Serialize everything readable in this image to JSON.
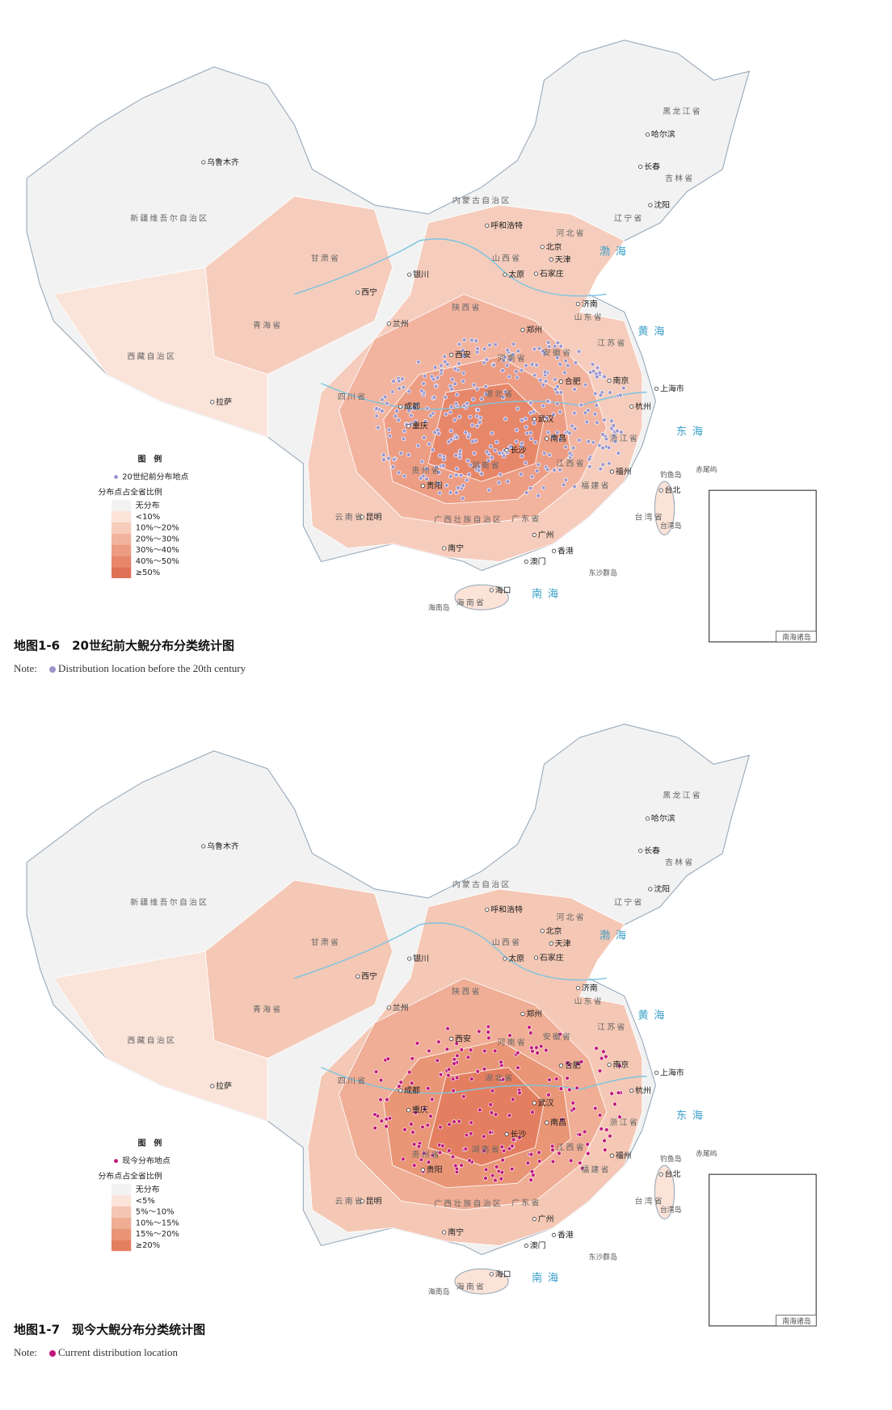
{
  "place_names": [
    "乌鲁木齐",
    "新疆维吾尔自治区",
    "内蒙古自治区",
    "呼和浩特",
    "北京",
    "天津",
    "石家庄",
    "太原",
    "济南",
    "郑州",
    "西安",
    "银川",
    "兰州",
    "西宁",
    "拉萨",
    "成都",
    "重庆",
    "武汉",
    "长沙",
    "南昌",
    "合肥",
    "南京",
    "上海市",
    "杭州",
    "福州",
    "贵阳",
    "昆明",
    "南宁",
    "广州",
    "香港",
    "澳门",
    "海口",
    "台北",
    "哈尔滨",
    "长春",
    "沈阳",
    "甘肃省",
    "青海省",
    "西藏自治区",
    "四川省",
    "云南省",
    "广西壮族自治区",
    "广东省",
    "湖北省",
    "湖南省",
    "江西省",
    "福建省",
    "浙江省",
    "安徽省",
    "江苏省",
    "山东省",
    "河南省",
    "陕西省",
    "山西省",
    "河北省",
    "辽宁省",
    "吉林省",
    "黑龙江省",
    "贵州省",
    "台湾省",
    "海南省",
    "渤海",
    "黄海",
    "东海",
    "南海",
    "钓鱼岛",
    "赤尾屿",
    "东沙群岛",
    "海南岛",
    "台湾岛",
    "南海诸岛"
  ],
  "maps": [
    {
      "title": "地图1-6　20世纪前大鲵分布分类统计图",
      "note_prefix": "Note:",
      "note": "Distribution location before the 20th century",
      "dot_color": "#9a95cc",
      "legend": {
        "title": "图　例",
        "point_label": "20世纪前分布地点",
        "ratio_title": "分布点占全省比例",
        "classes": [
          "无分布",
          "<10%",
          "10%～20%",
          "20%～30%",
          "30%～40%",
          "40%～50%",
          "≥50%"
        ],
        "class_colors": [
          "#f2f2f2",
          "#fbe3d8",
          "#f7ccbb",
          "#f2b39e",
          "#ec9c82",
          "#e78669",
          "#e07055"
        ]
      }
    },
    {
      "title": "地图1-7　现今大鲵分布分类统计图",
      "note_prefix": "Note:",
      "note": "Current distribution location",
      "dot_color": "#c0177a",
      "legend": {
        "title": "图　例",
        "point_label": "现今分布地点",
        "ratio_title": "分布点占全省比例",
        "classes": [
          "无分布",
          "<5%",
          "5%～10%",
          "10%～15%",
          "15%～20%",
          "≥20%"
        ],
        "class_colors": [
          "#f2f2f2",
          "#fbe3d8",
          "#f5c6b2",
          "#efad94",
          "#e99576",
          "#e37e5f"
        ]
      }
    }
  ]
}
